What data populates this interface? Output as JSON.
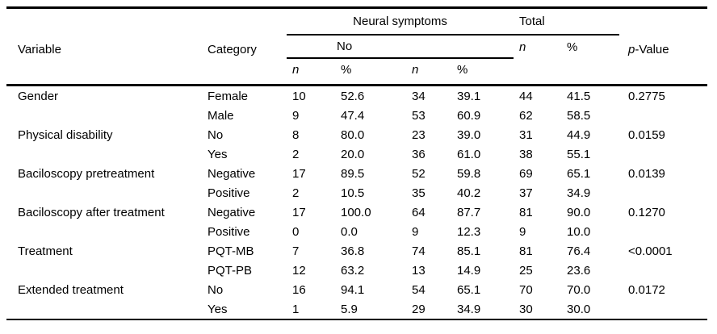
{
  "colors": {
    "background": "#ffffff",
    "text": "#000000",
    "rule": "#000000"
  },
  "table": {
    "header": {
      "variable": "Variable",
      "category": "Category",
      "neural_group": "Neural symptoms",
      "neural_sub_no": "No",
      "total_group": "Total",
      "p_italic": "p",
      "p_rest": "-Value",
      "n_label": "n",
      "pct_label": "%"
    },
    "rows": [
      {
        "variable": "Gender",
        "category": "Female",
        "n1": "10",
        "p1": "52.6",
        "n2": "34",
        "p2": "39.1",
        "tn": "44",
        "tp": "41.5",
        "pvalue": "0.2775"
      },
      {
        "variable": "",
        "category": "Male",
        "n1": "9",
        "p1": "47.4",
        "n2": "53",
        "p2": "60.9",
        "tn": "62",
        "tp": "58.5",
        "pvalue": ""
      },
      {
        "variable": "Physical disability",
        "category": "No",
        "n1": "8",
        "p1": "80.0",
        "n2": "23",
        "p2": "39.0",
        "tn": "31",
        "tp": "44.9",
        "pvalue": "0.0159"
      },
      {
        "variable": "",
        "category": "Yes",
        "n1": "2",
        "p1": "20.0",
        "n2": "36",
        "p2": "61.0",
        "tn": "38",
        "tp": "55.1",
        "pvalue": ""
      },
      {
        "variable": "Baciloscopy pretreatment",
        "category": "Negative",
        "n1": "17",
        "p1": "89.5",
        "n2": "52",
        "p2": "59.8",
        "tn": "69",
        "tp": "65.1",
        "pvalue": "0.0139"
      },
      {
        "variable": "",
        "category": "Positive",
        "n1": "2",
        "p1": "10.5",
        "n2": "35",
        "p2": "40.2",
        "tn": "37",
        "tp": "34.9",
        "pvalue": ""
      },
      {
        "variable": "Baciloscopy after treatment",
        "category": "Negative",
        "n1": "17",
        "p1": "100.0",
        "n2": "64",
        "p2": "87.7",
        "tn": "81",
        "tp": "90.0",
        "pvalue": "0.1270"
      },
      {
        "variable": "",
        "category": "Positive",
        "n1": "0",
        "p1": "0.0",
        "n2": "9",
        "p2": "12.3",
        "tn": "9",
        "tp": "10.0",
        "pvalue": ""
      },
      {
        "variable": "Treatment",
        "category": "PQT-MB",
        "n1": "7",
        "p1": "36.8",
        "n2": "74",
        "p2": "85.1",
        "tn": "81",
        "tp": "76.4",
        "pvalue": "<0.0001"
      },
      {
        "variable": "",
        "category": "PQT-PB",
        "n1": "12",
        "p1": "63.2",
        "n2": "13",
        "p2": "14.9",
        "tn": "25",
        "tp": "23.6",
        "pvalue": ""
      },
      {
        "variable": "Extended treatment",
        "category": "No",
        "n1": "16",
        "p1": "94.1",
        "n2": "54",
        "p2": "65.1",
        "tn": "70",
        "tp": "70.0",
        "pvalue": "0.0172"
      },
      {
        "variable": "",
        "category": "Yes",
        "n1": "1",
        "p1": "5.9",
        "n2": "29",
        "p2": "34.9",
        "tn": "30",
        "tp": "30.0",
        "pvalue": ""
      }
    ]
  }
}
